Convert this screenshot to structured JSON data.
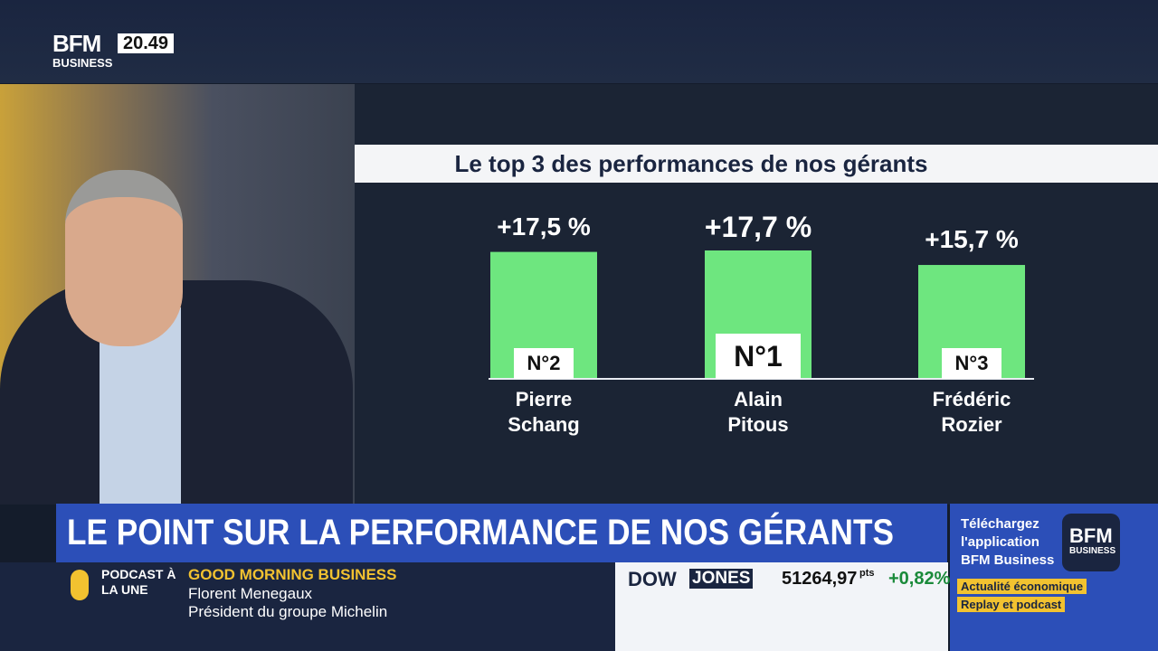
{
  "channel": {
    "logo": "BFM",
    "logo_sub": "BUSINESS",
    "time": "20.49"
  },
  "chart_data": {
    "type": "bar",
    "title": "Le top 3 des performances de nos gérants",
    "categories": [
      "Pierre Schang",
      "Alain Pitous",
      "Frédéric Rozier"
    ],
    "values": [
      17.5,
      17.7,
      15.7
    ],
    "value_labels": [
      "+17,5 %",
      "+17,7 %",
      "+15,7 %"
    ],
    "ranks": [
      "N°2",
      "N°1",
      "N°3"
    ],
    "color": "#6ee67f"
  },
  "headline": "LE POINT SUR LA PERFORMANCE DE NOS GÉRANTS",
  "podcast": {
    "label": "PODCAST À LA UNE",
    "show": "GOOD MORNING BUSINESS",
    "guest": "Florent Menegaux",
    "role": "Président du groupe Michelin"
  },
  "ticker": {
    "index_a": "DOW",
    "index_b": "JONES",
    "value": "51264,97",
    "unit": "pts",
    "change": "+0,82%"
  },
  "promo": {
    "text": "Téléchargez l'application BFM Business",
    "logo": "BFM",
    "logo_sub": "BUSINESS",
    "tag1": "Actualité économique",
    "tag2": "Replay et podcast"
  }
}
